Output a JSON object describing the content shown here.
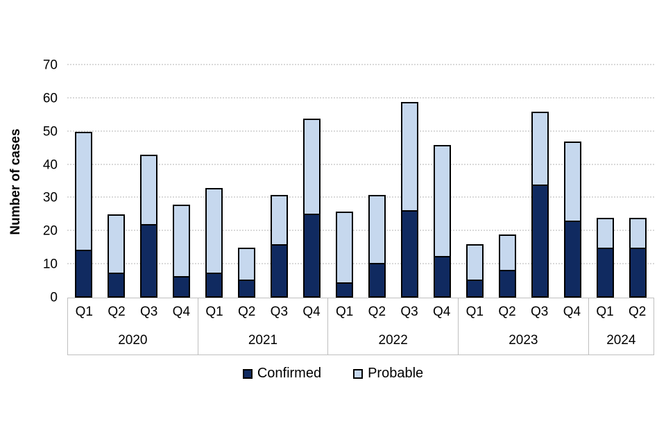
{
  "chart_data": {
    "type": "bar",
    "stacked": true,
    "title": "",
    "xlabel": "",
    "ylabel": "Number of cases",
    "ylim": [
      0,
      70
    ],
    "yticks": [
      0,
      10,
      20,
      30,
      40,
      50,
      60,
      70
    ],
    "grid": "horizontal-dotted",
    "legend_position": "bottom",
    "categories": [
      "Q1",
      "Q2",
      "Q3",
      "Q4",
      "Q1",
      "Q2",
      "Q3",
      "Q4",
      "Q1",
      "Q2",
      "Q3",
      "Q4",
      "Q1",
      "Q2",
      "Q3",
      "Q4",
      "Q1",
      "Q2"
    ],
    "year_groups": [
      {
        "label": "2020",
        "quarters": [
          "Q1",
          "Q2",
          "Q3",
          "Q4"
        ]
      },
      {
        "label": "2021",
        "quarters": [
          "Q1",
          "Q2",
          "Q3",
          "Q4"
        ]
      },
      {
        "label": "2022",
        "quarters": [
          "Q1",
          "Q2",
          "Q3",
          "Q4"
        ]
      },
      {
        "label": "2023",
        "quarters": [
          "Q1",
          "Q2",
          "Q3",
          "Q4"
        ]
      },
      {
        "label": "2024",
        "quarters": [
          "Q1",
          "Q2"
        ]
      }
    ],
    "series": [
      {
        "name": "Confirmed",
        "color": "#102a60",
        "values": [
          14,
          7,
          22,
          6,
          7,
          5,
          16,
          25,
          4,
          10,
          26,
          12,
          5,
          8,
          34,
          23,
          15,
          15
        ]
      },
      {
        "name": "Probable",
        "color": "#c6d8ee",
        "values": [
          36,
          18,
          21,
          22,
          26,
          10,
          15,
          29,
          22,
          21,
          33,
          34,
          11,
          11,
          22,
          24,
          9,
          9
        ]
      }
    ],
    "totals": [
      50,
      25,
      43,
      28,
      33,
      15,
      31,
      54,
      26,
      31,
      59,
      46,
      16,
      19,
      56,
      47,
      24,
      24
    ]
  },
  "colors": {
    "confirmed": "#102a60",
    "probable": "#c6d8ee",
    "bar_border": "#000000",
    "gridline": "#d9d9d9",
    "axis_box_border": "#bfbfbf",
    "background": "#ffffff"
  }
}
